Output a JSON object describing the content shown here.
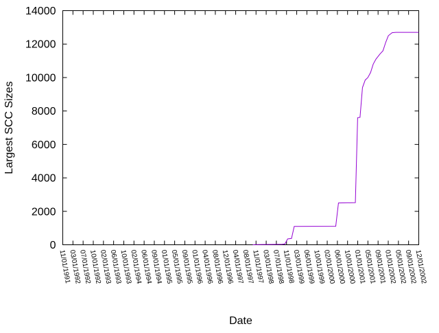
{
  "chart_data": {
    "type": "line",
    "title": "",
    "xlabel": "Date",
    "ylabel": "Largest SCC Sizes",
    "ylim": [
      0,
      14000
    ],
    "yticks": [
      0,
      2000,
      4000,
      6000,
      8000,
      10000,
      12000,
      14000
    ],
    "xlim": [
      "1991-11-01",
      "2002-12-01"
    ],
    "xtick_labels": [
      "11/01/1991",
      "03/01/1992",
      "07/01/1992",
      "10/01/1992",
      "02/01/1993",
      "06/01/1993",
      "10/01/1993",
      "02/01/1994",
      "06/01/1994",
      "09/01/1994",
      "01/01/1995",
      "05/01/1995",
      "09/01/1995",
      "01/01/1996",
      "04/01/1996",
      "08/01/1996",
      "12/01/1996",
      "04/01/1997",
      "08/01/1997",
      "11/01/1997",
      "03/01/1998",
      "07/01/1998",
      "11/01/1998",
      "03/01/1999",
      "06/01/1999",
      "10/01/1999",
      "02/01/2000",
      "06/01/2000",
      "10/01/2000",
      "01/01/2001",
      "05/01/2001",
      "09/01/2001",
      "01/01/2002",
      "05/01/2002",
      "09/01/2002",
      "12/01/2002"
    ],
    "grid": false,
    "series": [
      {
        "color": "#9400d3",
        "points": [
          [
            "1997-10-01",
            0
          ],
          [
            "1997-11-01",
            10
          ],
          [
            "1998-05-01",
            20
          ],
          [
            "1998-09-01",
            30
          ],
          [
            "1998-10-01",
            50
          ],
          [
            "1998-11-01",
            350
          ],
          [
            "1998-12-15",
            380
          ],
          [
            "1999-01-15",
            1100
          ],
          [
            "2000-05-01",
            1110
          ],
          [
            "2000-06-01",
            2500
          ],
          [
            "2000-12-10",
            2520
          ],
          [
            "2001-01-05",
            7600
          ],
          [
            "2001-02-01",
            7620
          ],
          [
            "2001-03-01",
            9400
          ],
          [
            "2001-04-01",
            9850
          ],
          [
            "2001-05-01",
            10000
          ],
          [
            "2001-06-01",
            10300
          ],
          [
            "2001-07-01",
            10800
          ],
          [
            "2001-08-01",
            11100
          ],
          [
            "2001-09-15",
            11400
          ],
          [
            "2001-10-20",
            11600
          ],
          [
            "2001-11-20",
            12100
          ],
          [
            "2001-12-20",
            12500
          ],
          [
            "2002-02-01",
            12680
          ],
          [
            "2002-03-15",
            12700
          ],
          [
            "2002-12-01",
            12700
          ]
        ]
      }
    ]
  }
}
